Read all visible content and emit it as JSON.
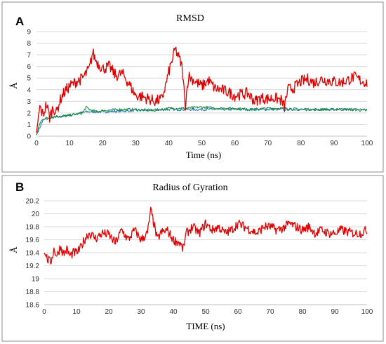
{
  "chart_data": [
    {
      "panel": "A",
      "type": "line",
      "title": "RMSD",
      "xlabel": "Time (ns)",
      "ylabel": "Å",
      "xlim": [
        0,
        100
      ],
      "ylim": [
        0,
        9
      ],
      "xticks": [
        0,
        10,
        20,
        30,
        40,
        50,
        60,
        70,
        80,
        90,
        100
      ],
      "yticks": [
        0,
        1,
        2,
        3,
        4,
        5,
        6,
        7,
        8,
        9
      ],
      "grid": true,
      "series": [
        {
          "color": "#e00000",
          "x": [
            0,
            1,
            2,
            3,
            4,
            5,
            6,
            7,
            8,
            9,
            10,
            12,
            14,
            16,
            17,
            18,
            20,
            22,
            24,
            26,
            28,
            30,
            32,
            34,
            36,
            38,
            39,
            40,
            41,
            42,
            43,
            44,
            45,
            46,
            48,
            50,
            52,
            54,
            56,
            58,
            60,
            62,
            64,
            66,
            68,
            70,
            72,
            74,
            75,
            76,
            78,
            80,
            82,
            84,
            86,
            88,
            90,
            92,
            94,
            96,
            98,
            100
          ],
          "y": [
            0.3,
            2.5,
            1.8,
            2.8,
            1.6,
            2.5,
            2.0,
            3.0,
            3.6,
            4.0,
            4.3,
            4.7,
            5.0,
            5.8,
            7.2,
            6.5,
            5.8,
            6.0,
            5.2,
            5.4,
            4.5,
            3.5,
            3.4,
            3.2,
            3.0,
            3.2,
            4.3,
            5.5,
            6.5,
            7.5,
            6.8,
            6.0,
            2.7,
            5.2,
            4.7,
            4.3,
            4.8,
            4.1,
            4.0,
            3.8,
            3.5,
            3.6,
            3.7,
            3.0,
            3.3,
            3.2,
            3.3,
            3.1,
            2.5,
            4.0,
            4.2,
            4.7,
            4.9,
            4.6,
            4.9,
            4.8,
            4.7,
            4.6,
            4.8,
            5.1,
            4.8,
            4.6
          ]
        },
        {
          "color": "#1a8b3e",
          "x": [
            0,
            1,
            2,
            4,
            6,
            8,
            10,
            12,
            14,
            15,
            16,
            18,
            20,
            25,
            30,
            35,
            40,
            45,
            50,
            55,
            60,
            65,
            70,
            75,
            80,
            85,
            90,
            95,
            100
          ],
          "y": [
            0.1,
            1.1,
            1.5,
            1.6,
            1.7,
            1.7,
            1.8,
            1.9,
            2.0,
            2.5,
            2.3,
            2.1,
            2.2,
            2.3,
            2.3,
            2.2,
            2.4,
            2.4,
            2.5,
            2.4,
            2.4,
            2.3,
            2.4,
            2.4,
            2.3,
            2.3,
            2.3,
            2.3,
            2.2
          ]
        },
        {
          "color": "#2a7fb8",
          "x": [
            0,
            2,
            5,
            10,
            15,
            20,
            30,
            40,
            50,
            60,
            70,
            80,
            90,
            100
          ],
          "y": [
            0.1,
            1.4,
            1.6,
            1.8,
            2.1,
            2.1,
            2.2,
            2.3,
            2.3,
            2.3,
            2.3,
            2.3,
            2.3,
            2.3
          ]
        }
      ]
    },
    {
      "panel": "B",
      "type": "line",
      "title": "Radius of Gyration",
      "xlabel": "TIME (ns)",
      "ylabel": "Å",
      "xlim": [
        0,
        100
      ],
      "ylim": [
        18.6,
        20.2
      ],
      "xticks": [
        0,
        10,
        20,
        30,
        40,
        50,
        60,
        70,
        80,
        90,
        100
      ],
      "yticks": [
        "18.6",
        "18.8",
        "19",
        "19.2",
        "19.4",
        "19.6",
        "19.8",
        "20",
        "20.2"
      ],
      "grid": true,
      "series": [
        {
          "color": "#e00000",
          "x": [
            0,
            1,
            2,
            3,
            4,
            5,
            6,
            7,
            8,
            9,
            10,
            11,
            12,
            13,
            14,
            16,
            18,
            20,
            22,
            24,
            26,
            28,
            30,
            32,
            33,
            34,
            35,
            36,
            38,
            40,
            42,
            43,
            44,
            46,
            48,
            50,
            52,
            54,
            56,
            58,
            60,
            62,
            64,
            66,
            68,
            70,
            72,
            74,
            76,
            78,
            80,
            82,
            84,
            86,
            88,
            90,
            92,
            94,
            96,
            98,
            100
          ],
          "y": [
            19.4,
            19.3,
            19.25,
            19.45,
            19.35,
            19.5,
            19.38,
            19.45,
            19.35,
            19.4,
            19.4,
            19.45,
            19.55,
            19.65,
            19.7,
            19.62,
            19.7,
            19.68,
            19.55,
            19.75,
            19.6,
            19.75,
            19.6,
            19.7,
            20.05,
            19.85,
            19.6,
            19.7,
            19.75,
            19.6,
            19.55,
            19.45,
            19.7,
            19.8,
            19.7,
            19.85,
            19.75,
            19.8,
            19.7,
            19.75,
            19.85,
            19.8,
            19.75,
            19.7,
            19.8,
            19.8,
            19.75,
            19.78,
            19.85,
            19.8,
            19.75,
            19.8,
            19.7,
            19.75,
            19.7,
            19.7,
            19.75,
            19.72,
            19.7,
            19.7,
            19.75
          ]
        }
      ]
    }
  ]
}
